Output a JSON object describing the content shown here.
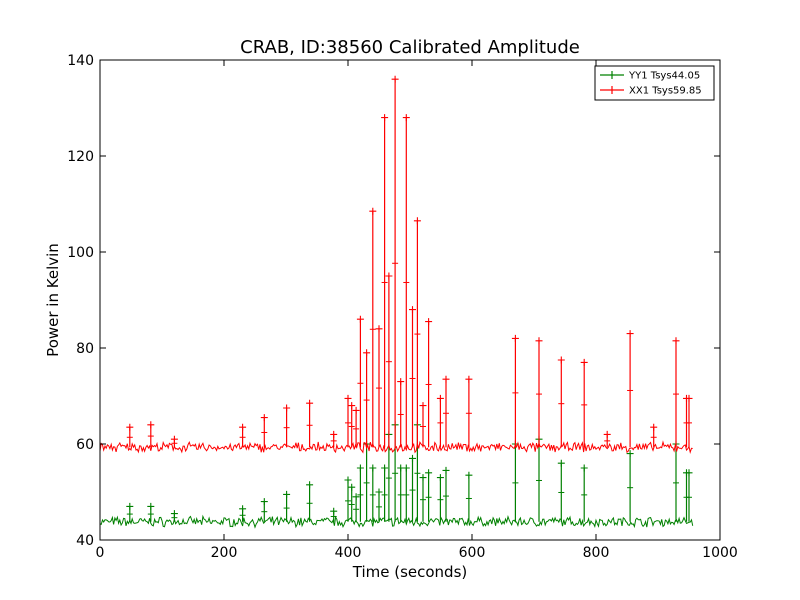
{
  "chart_data": {
    "type": "line",
    "title": "CRAB, ID:38560 Calibrated Amplitude",
    "xlabel": "Time (seconds)",
    "ylabel": "Power in Kelvin",
    "xlim": [
      0,
      1000
    ],
    "ylim": [
      40,
      140
    ],
    "xticks": [
      "0",
      "200",
      "400",
      "600",
      "800",
      "1000"
    ],
    "yticks": [
      "40",
      "60",
      "80",
      "100",
      "120",
      "140"
    ],
    "grid": false,
    "legend_position": "top-right",
    "markers": "+",
    "series": [
      {
        "name": "YY1 Tsys44.05",
        "color": "#008000",
        "baseline": 43.8,
        "x_end": 957,
        "spikes": [
          [
            48,
            47
          ],
          [
            82,
            47
          ],
          [
            120,
            45.5
          ],
          [
            230,
            46.5
          ],
          [
            265,
            48
          ],
          [
            301,
            49.5
          ],
          [
            338,
            51.5
          ],
          [
            377,
            46
          ],
          [
            400,
            52.5
          ],
          [
            406,
            51
          ],
          [
            413,
            49
          ],
          [
            420,
            55
          ],
          [
            430,
            60
          ],
          [
            440,
            55
          ],
          [
            450,
            50
          ],
          [
            459,
            55
          ],
          [
            466,
            62
          ],
          [
            476,
            64
          ],
          [
            485,
            55
          ],
          [
            494,
            55
          ],
          [
            504,
            57
          ],
          [
            512,
            64
          ],
          [
            521,
            53
          ],
          [
            530,
            54
          ],
          [
            549,
            53
          ],
          [
            558,
            54.5
          ],
          [
            595,
            53.5
          ],
          [
            670,
            60
          ],
          [
            708,
            61
          ],
          [
            744,
            56
          ],
          [
            781,
            55
          ],
          [
            855,
            58
          ],
          [
            929,
            60
          ],
          [
            946,
            54
          ],
          [
            950,
            54
          ]
        ]
      },
      {
        "name": "XX1 Tsys59.85",
        "color": "#ff0000",
        "baseline": 59.3,
        "x_end": 957,
        "spikes": [
          [
            48,
            63.5
          ],
          [
            82,
            64
          ],
          [
            120,
            61
          ],
          [
            230,
            63.5
          ],
          [
            265,
            65.5
          ],
          [
            301,
            67.5
          ],
          [
            338,
            68.5
          ],
          [
            377,
            62
          ],
          [
            400,
            69.5
          ],
          [
            406,
            68
          ],
          [
            413,
            67
          ],
          [
            420,
            86
          ],
          [
            430,
            79
          ],
          [
            440,
            108.5
          ],
          [
            450,
            84
          ],
          [
            459,
            128
          ],
          [
            466,
            95
          ],
          [
            476,
            136
          ],
          [
            485,
            73
          ],
          [
            494,
            128
          ],
          [
            504,
            88
          ],
          [
            512,
            106.5
          ],
          [
            521,
            68
          ],
          [
            530,
            85.5
          ],
          [
            549,
            69.5
          ],
          [
            558,
            73.5
          ],
          [
            595,
            73.5
          ],
          [
            670,
            82
          ],
          [
            708,
            81.5
          ],
          [
            744,
            77.5
          ],
          [
            781,
            77
          ],
          [
            818,
            62
          ],
          [
            855,
            83
          ],
          [
            893,
            63.5
          ],
          [
            929,
            81.5
          ],
          [
            946,
            69.5
          ],
          [
            950,
            69.5
          ]
        ]
      }
    ]
  }
}
